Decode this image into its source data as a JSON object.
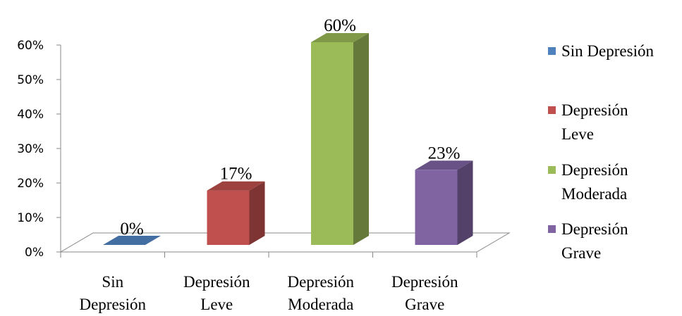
{
  "chart_data": {
    "type": "bar",
    "title": "",
    "xlabel": "",
    "ylabel": "",
    "ylim": [
      0,
      60
    ],
    "y_ticks": [
      "0%",
      "10%",
      "20%",
      "30%",
      "40%",
      "50%",
      "60%"
    ],
    "categories": [
      [
        "Sin",
        "Depresión"
      ],
      [
        "Depresión",
        "Leve"
      ],
      [
        "Depresión",
        "Moderada"
      ],
      [
        "Depresión",
        "Grave"
      ]
    ],
    "values": [
      0,
      17,
      60,
      23
    ],
    "data_labels": [
      "0%",
      "17%",
      "60%",
      "23%"
    ],
    "colors": [
      "#4F81BD",
      "#C0504D",
      "#9BBB59",
      "#8064A2"
    ],
    "legend": {
      "position": "right",
      "entries": [
        [
          "Sin Depresión"
        ],
        [
          "Depresión",
          "Leve"
        ],
        [
          "Depresión",
          "Moderada"
        ],
        [
          "Depresión",
          "Grave"
        ]
      ]
    },
    "three_d": true
  }
}
